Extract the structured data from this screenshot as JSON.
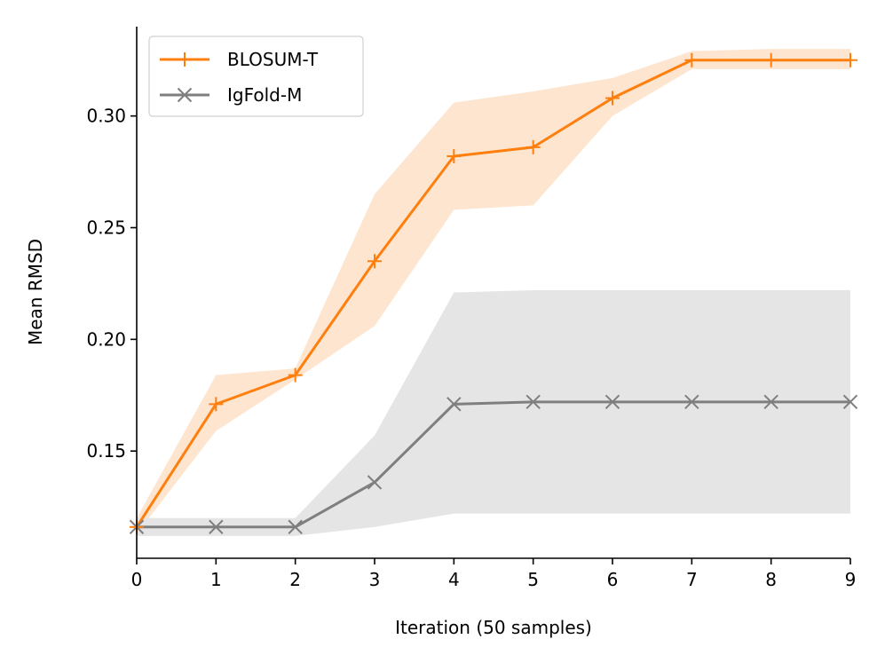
{
  "chart_data": {
    "type": "line",
    "title": "",
    "xlabel": "Iteration (50 samples)",
    "ylabel": "Mean RMSD",
    "xlim": [
      0,
      9
    ],
    "ylim": [
      0.102,
      0.34
    ],
    "x_ticks": [
      0,
      1,
      2,
      3,
      4,
      5,
      6,
      7,
      8,
      9
    ],
    "y_ticks": [
      0.15,
      0.2,
      0.25,
      0.3
    ],
    "y_tick_labels": [
      "0.15",
      "0.20",
      "0.25",
      "0.30"
    ],
    "x": [
      0,
      1,
      2,
      3,
      4,
      5,
      6,
      7,
      8,
      9
    ],
    "legend_position": "top-left",
    "grid": false,
    "series": [
      {
        "name": "BLOSUM-T",
        "color": "#ff7f0e",
        "band_color": "#fde5cf",
        "marker": "plus",
        "values": [
          0.116,
          0.171,
          0.184,
          0.235,
          0.282,
          0.286,
          0.308,
          0.325,
          0.325,
          0.325
        ],
        "lower": [
          0.113,
          0.159,
          0.182,
          0.206,
          0.258,
          0.26,
          0.3,
          0.321,
          0.321,
          0.321
        ],
        "upper": [
          0.12,
          0.184,
          0.187,
          0.265,
          0.306,
          0.311,
          0.317,
          0.329,
          0.33,
          0.33
        ]
      },
      {
        "name": "IgFold-M",
        "color": "#7f7f7f",
        "band_color": "#e5e5e5",
        "marker": "x",
        "values": [
          0.116,
          0.116,
          0.116,
          0.136,
          0.171,
          0.172,
          0.172,
          0.172,
          0.172,
          0.172
        ],
        "lower": [
          0.112,
          0.112,
          0.112,
          0.116,
          0.122,
          0.122,
          0.122,
          0.122,
          0.122,
          0.122
        ],
        "upper": [
          0.12,
          0.12,
          0.12,
          0.157,
          0.221,
          0.222,
          0.222,
          0.222,
          0.222,
          0.222
        ]
      }
    ]
  }
}
